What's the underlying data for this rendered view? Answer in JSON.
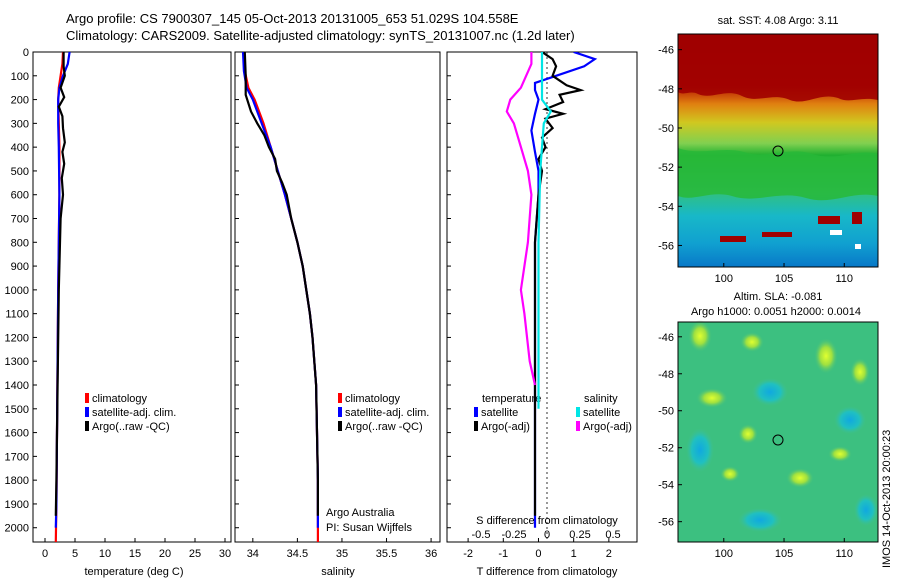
{
  "header": {
    "line1": "Argo profile: CS 7900307_145 05-Oct-2013 20131005_653 51.029S 104.558E",
    "line2": "Climatology: CARS2009. Satellite-adjusted climatology: synTS_20131007.nc (1.2d later)"
  },
  "colors": {
    "climatology": "#ff0000",
    "satellite": "#0000ff",
    "argo": "#000000",
    "salinity_satellite": "#00e5e5",
    "salinity_argo": "#ff00ff"
  },
  "chart_data": [
    {
      "type": "line",
      "panel": "temperature",
      "xlabel": "temperature (deg C)",
      "xlim": [
        -2,
        31
      ],
      "xticks": [
        0,
        5,
        10,
        15,
        20,
        25,
        30
      ],
      "ylim": [
        2060,
        0
      ],
      "yticks": [
        0,
        100,
        200,
        300,
        400,
        500,
        600,
        700,
        800,
        900,
        1000,
        1100,
        1200,
        1300,
        1400,
        1500,
        1600,
        1700,
        1800,
        1900,
        2000
      ],
      "legend": [
        "climatology",
        "satellite-adj. clim.",
        "Argo(..raw -QC)"
      ],
      "series": [
        {
          "name": "climatology",
          "color": "#ff0000",
          "points": [
            [
              3.0,
              0
            ],
            [
              2.9,
              50
            ],
            [
              2.6,
              100
            ],
            [
              2.3,
              150
            ],
            [
              2.2,
              200
            ],
            [
              2.3,
              300
            ],
            [
              2.4,
              400
            ],
            [
              2.4,
              600
            ],
            [
              2.3,
              800
            ],
            [
              2.2,
              1000
            ],
            [
              2.1,
              1300
            ],
            [
              2.0,
              1600
            ],
            [
              1.9,
              1900
            ],
            [
              1.8,
              2060
            ]
          ]
        },
        {
          "name": "satellite-adj. clim.",
          "color": "#0000ff",
          "points": [
            [
              4.1,
              0
            ],
            [
              3.8,
              50
            ],
            [
              3.0,
              100
            ],
            [
              2.4,
              150
            ],
            [
              2.2,
              200
            ],
            [
              2.2,
              300
            ],
            [
              2.3,
              400
            ],
            [
              2.4,
              600
            ],
            [
              2.3,
              800
            ],
            [
              2.2,
              1000
            ],
            [
              2.1,
              1300
            ],
            [
              2.0,
              1600
            ],
            [
              1.9,
              1900
            ],
            [
              1.8,
              2000
            ]
          ]
        },
        {
          "name": "Argo(..raw -QC)",
          "color": "#000000",
          "points": [
            [
              3.1,
              0
            ],
            [
              3.1,
              60
            ],
            [
              3.3,
              100
            ],
            [
              2.6,
              150
            ],
            [
              3.2,
              190
            ],
            [
              2.3,
              230
            ],
            [
              2.9,
              270
            ],
            [
              3.0,
              320
            ],
            [
              3.3,
              380
            ],
            [
              2.9,
              420
            ],
            [
              3.2,
              470
            ],
            [
              2.8,
              530
            ],
            [
              3.0,
              600
            ],
            [
              2.6,
              700
            ],
            [
              2.5,
              800
            ],
            [
              2.4,
              900
            ],
            [
              2.3,
              1000
            ],
            [
              2.2,
              1200
            ],
            [
              2.1,
              1400
            ],
            [
              2.0,
              1600
            ],
            [
              1.9,
              1800
            ],
            [
              1.8,
              1950
            ]
          ]
        }
      ]
    },
    {
      "type": "line",
      "panel": "salinity",
      "xlabel": "salinity",
      "xlim": [
        33.8,
        36.1
      ],
      "xticks": [
        34,
        34.5,
        35,
        35.5,
        36
      ],
      "ylim": [
        2060,
        0
      ],
      "legend": [
        "climatology",
        "satellite-adj. clim.",
        "Argo(..raw -QC)"
      ],
      "annotation": [
        "Argo Australia",
        "PI: Susan Wijffels"
      ],
      "series": [
        {
          "name": "climatology",
          "color": "#ff0000",
          "points": [
            [
              33.9,
              0
            ],
            [
              33.91,
              80
            ],
            [
              33.95,
              150
            ],
            [
              34.02,
              200
            ],
            [
              34.12,
              300
            ],
            [
              34.2,
              400
            ],
            [
              34.28,
              500
            ],
            [
              34.36,
              600
            ],
            [
              34.43,
              700
            ],
            [
              34.5,
              800
            ],
            [
              34.56,
              900
            ],
            [
              34.6,
              1000
            ],
            [
              34.64,
              1100
            ],
            [
              34.67,
              1200
            ],
            [
              34.69,
              1300
            ],
            [
              34.71,
              1400
            ],
            [
              34.72,
              1600
            ],
            [
              34.73,
              1800
            ],
            [
              34.73,
              2060
            ]
          ]
        },
        {
          "name": "satellite-adj. clim.",
          "color": "#0000ff",
          "points": [
            [
              33.89,
              0
            ],
            [
              33.9,
              80
            ],
            [
              33.93,
              150
            ],
            [
              34.0,
              200
            ],
            [
              34.1,
              300
            ],
            [
              34.2,
              400
            ],
            [
              34.28,
              500
            ],
            [
              34.36,
              600
            ],
            [
              34.43,
              700
            ],
            [
              34.5,
              800
            ],
            [
              34.56,
              900
            ],
            [
              34.6,
              1000
            ],
            [
              34.64,
              1100
            ],
            [
              34.67,
              1200
            ],
            [
              34.69,
              1300
            ],
            [
              34.71,
              1400
            ],
            [
              34.72,
              1600
            ],
            [
              34.73,
              1800
            ],
            [
              34.73,
              2000
            ]
          ]
        },
        {
          "name": "Argo(..raw -QC)",
          "color": "#000000",
          "points": [
            [
              33.91,
              0
            ],
            [
              33.92,
              100
            ],
            [
              33.92,
              180
            ],
            [
              33.98,
              250
            ],
            [
              34.05,
              300
            ],
            [
              34.13,
              350
            ],
            [
              34.18,
              400
            ],
            [
              34.25,
              450
            ],
            [
              34.27,
              500
            ],
            [
              34.33,
              550
            ],
            [
              34.38,
              600
            ],
            [
              34.43,
              700
            ],
            [
              34.5,
              800
            ],
            [
              34.56,
              900
            ],
            [
              34.6,
              1000
            ],
            [
              34.64,
              1100
            ],
            [
              34.67,
              1200
            ],
            [
              34.69,
              1300
            ],
            [
              34.71,
              1400
            ],
            [
              34.72,
              1600
            ],
            [
              34.73,
              1800
            ],
            [
              34.73,
              1950
            ]
          ]
        }
      ]
    },
    {
      "type": "line",
      "panel": "difference",
      "xlabel": "T difference from climatology",
      "xlim": [
        -2.6,
        2.8
      ],
      "xticks": [
        -2,
        -1,
        0,
        1,
        2
      ],
      "xlabel_top": "S difference from climatology",
      "xticks_top": [
        "-0.5",
        "-0.25",
        "0",
        "0.25",
        "0.5"
      ],
      "ylim": [
        2060,
        0
      ],
      "legend_temperature": {
        "heading": "temperature",
        "items": [
          "satellite",
          "Argo(-adj)"
        ]
      },
      "legend_salinity": {
        "heading": "salinity",
        "items": [
          "satellite",
          "Argo(-adj)"
        ]
      },
      "series": [
        {
          "name": "temperature satellite",
          "color": "#0000ff",
          "points": [
            [
              1.0,
              0
            ],
            [
              1.6,
              30
            ],
            [
              1.3,
              60
            ],
            [
              0.5,
              100
            ],
            [
              -0.1,
              130
            ],
            [
              -0.1,
              160
            ],
            [
              0.0,
              200
            ],
            [
              -0.1,
              260
            ],
            [
              -0.2,
              330
            ],
            [
              -0.1,
              420
            ],
            [
              0.0,
              500
            ],
            [
              0.0,
              600
            ],
            [
              -0.1,
              800
            ],
            [
              -0.1,
              1000
            ],
            [
              -0.1,
              1500
            ],
            [
              -0.1,
              2000
            ]
          ]
        },
        {
          "name": "temperature Argo(-adj)",
          "color": "#000000",
          "points": [
            [
              0.1,
              0
            ],
            [
              0.4,
              30
            ],
            [
              0.5,
              60
            ],
            [
              0.4,
              100
            ],
            [
              0.8,
              140
            ],
            [
              1.2,
              160
            ],
            [
              0.6,
              180
            ],
            [
              0.7,
              210
            ],
            [
              0.2,
              240
            ],
            [
              0.7,
              260
            ],
            [
              0.2,
              280
            ],
            [
              0.4,
              320
            ],
            [
              0.1,
              360
            ],
            [
              0.2,
              400
            ],
            [
              0.0,
              450
            ],
            [
              0.1,
              500
            ],
            [
              0.0,
              600
            ],
            [
              -0.1,
              800
            ],
            [
              -0.1,
              1000
            ],
            [
              -0.1,
              1500
            ],
            [
              -0.1,
              1950
            ]
          ]
        },
        {
          "name": "salinity satellite",
          "color": "#00e5e5",
          "points": [
            [
              0.1,
              0
            ],
            [
              0.1,
              100
            ],
            [
              0.1,
              200
            ],
            [
              0.35,
              250
            ],
            [
              0.15,
              300
            ],
            [
              0.1,
              400
            ],
            [
              0.05,
              500
            ],
            [
              0.0,
              800
            ],
            [
              0.0,
              1200
            ],
            [
              0.0,
              1500
            ]
          ]
        },
        {
          "name": "salinity Argo(-adj)",
          "color": "#ff00ff",
          "points": [
            [
              -0.2,
              0
            ],
            [
              -0.2,
              50
            ],
            [
              -0.5,
              150
            ],
            [
              -0.8,
              200
            ],
            [
              -0.9,
              250
            ],
            [
              -0.7,
              300
            ],
            [
              -0.5,
              400
            ],
            [
              -0.3,
              500
            ],
            [
              -0.2,
              600
            ],
            [
              -0.3,
              800
            ],
            [
              -0.5,
              1000
            ],
            [
              -0.4,
              1100
            ],
            [
              -0.25,
              1300
            ],
            [
              -0.1,
              1400
            ]
          ]
        }
      ]
    },
    {
      "type": "heatmap",
      "panel": "sst-map",
      "title": "sat. SST: 4.08 Argo: 3.11",
      "xticks": [
        100,
        105,
        110
      ],
      "yticks": [
        -46,
        -48,
        -50,
        -52,
        -54,
        -56
      ],
      "xlim": [
        96.2,
        112.8
      ],
      "ylim": [
        -57.1,
        -45.2
      ],
      "marker": {
        "lon": 104.558,
        "lat": -51.029
      }
    },
    {
      "type": "heatmap",
      "panel": "sla-map",
      "title_lines": [
        "Altim. SLA: -0.081",
        "Argo h1000: 0.0051 h2000: 0.0014"
      ],
      "xticks": [
        100,
        105,
        110
      ],
      "yticks": [
        -46,
        -48,
        -50,
        -52,
        -54,
        -56
      ],
      "xlim": [
        96.2,
        112.8
      ],
      "ylim": [
        -57.1,
        -45.2
      ],
      "marker": {
        "lon": 104.558,
        "lat": -51.029
      },
      "side_label": "IMOS 14-Oct-2013 20:00:23"
    }
  ]
}
